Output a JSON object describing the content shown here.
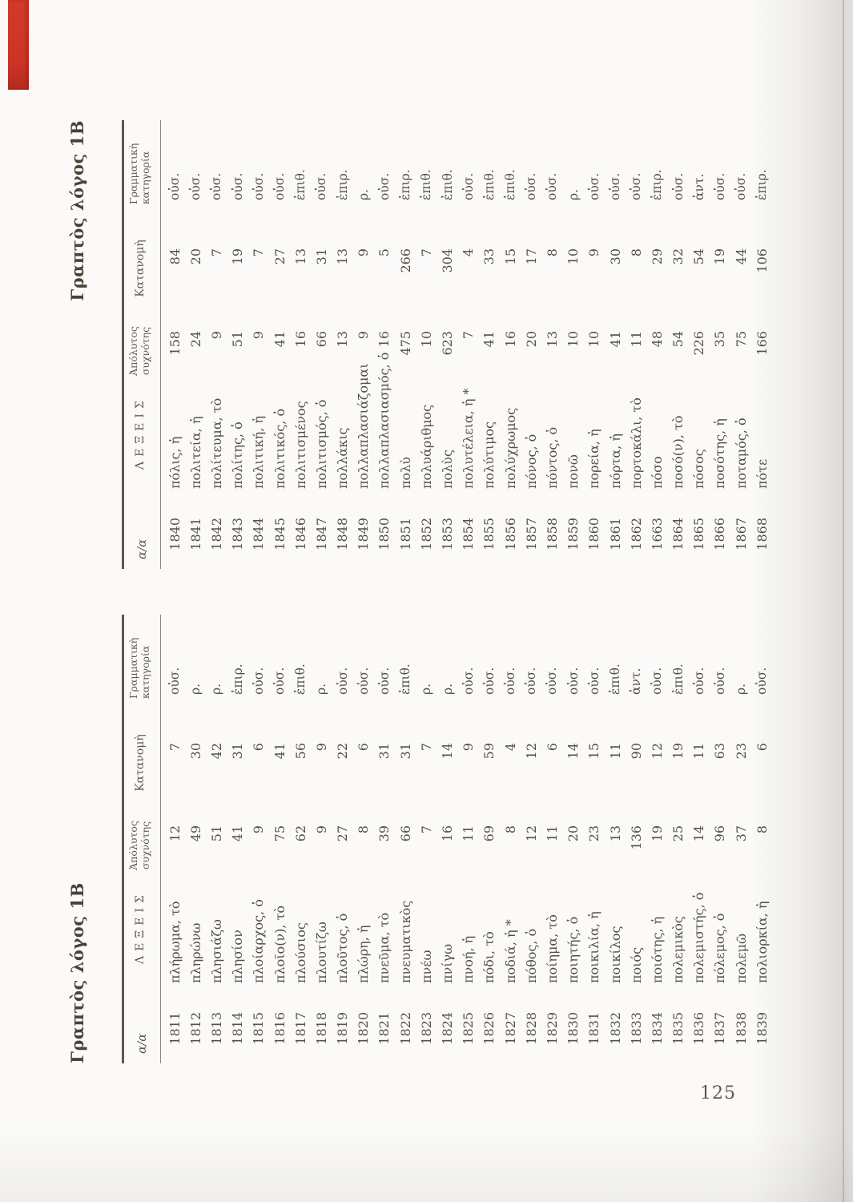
{
  "page": {
    "number": "125"
  },
  "colors": {
    "bookmark_red": "#cd3426"
  },
  "headers": {
    "index": "α/α",
    "lexeis": "ΛΕΞΕΙΣ",
    "freq_line1": "Ἀπόλυτος",
    "freq_line2": "συχνότης",
    "distribution": "Κατανομὴ",
    "gram_line1": "Γραμματικὴ",
    "gram_line2": "κατηγορία"
  },
  "left_table": {
    "title": "Γραπτὸς λόγος 1Β",
    "rows": [
      [
        "1811",
        "πλήρωμα, τὸ",
        "12",
        "7",
        "οὐσ."
      ],
      [
        "1812",
        "πληρώνω",
        "49",
        "30",
        "ρ."
      ],
      [
        "1813",
        "πλησιάζω",
        "51",
        "42",
        "ρ."
      ],
      [
        "1814",
        "πλησίον",
        "41",
        "31",
        "ἐπιρ."
      ],
      [
        "1815",
        "πλοίαρχος, ὁ",
        "9",
        "6",
        "οὐσ."
      ],
      [
        "1816",
        "πλοῖο(ν), τὸ",
        "75",
        "41",
        "οὐσ."
      ],
      [
        "1817",
        "πλούσιος",
        "62",
        "56",
        "ἐπιθ."
      ],
      [
        "1818",
        "πλουτίζω",
        "9",
        "9",
        "ρ."
      ],
      [
        "1819",
        "πλοῦτος, ὁ",
        "27",
        "22",
        "οὐσ."
      ],
      [
        "1820",
        "πλώρη, ἡ",
        "8",
        "6",
        "οὐσ."
      ],
      [
        "1821",
        "πνεῦμα, τὸ",
        "39",
        "31",
        "οὐσ."
      ],
      [
        "1822",
        "πνευματικὸς",
        "66",
        "31",
        "ἐπιθ."
      ],
      [
        "1823",
        "πνέω",
        "7",
        "7",
        "ρ."
      ],
      [
        "1824",
        "πνίγω",
        "16",
        "14",
        "ρ."
      ],
      [
        "1825",
        "πνοή, ἡ",
        "11",
        "9",
        "οὐσ."
      ],
      [
        "1826",
        "πόδι, τὸ",
        "69",
        "59",
        "οὐσ."
      ],
      [
        "1827",
        "ποδιά, ἡ *",
        "8",
        "4",
        "οὐσ."
      ],
      [
        "1828",
        "πόθος, ὁ",
        "12",
        "12",
        "οὐσ."
      ],
      [
        "1829",
        "ποίημα, τὸ",
        "11",
        "6",
        "οὐσ."
      ],
      [
        "1830",
        "ποιητής, ὁ",
        "20",
        "14",
        "οὐσ."
      ],
      [
        "1831",
        "ποικιλία, ἡ",
        "23",
        "15",
        "οὐσ."
      ],
      [
        "1832",
        "ποικίλος",
        "13",
        "11",
        "ἐπιθ."
      ],
      [
        "1833",
        "ποιός",
        "136",
        "90",
        "ἀντ."
      ],
      [
        "1834",
        "ποιότης, ἡ",
        "19",
        "12",
        "οὐσ."
      ],
      [
        "1835",
        "πολεμικὸς",
        "25",
        "19",
        "ἐπιθ."
      ],
      [
        "1836",
        "πολεμιστής, ὁ",
        "14",
        "11",
        "οὐσ."
      ],
      [
        "1837",
        "πόλεμος, ὁ",
        "96",
        "63",
        "οὐσ."
      ],
      [
        "1838",
        "πολεμῶ",
        "37",
        "23",
        "ρ."
      ],
      [
        "1839",
        "πολιορκία, ἡ",
        "8",
        "6",
        "οὐσ."
      ]
    ]
  },
  "right_table": {
    "title": "Γραπτὸς λόγος 1Β",
    "rows": [
      [
        "1840",
        "πόλις, ἡ",
        "158",
        "84",
        "οὐσ."
      ],
      [
        "1841",
        "πολιτεία, ἡ",
        "24",
        "20",
        "οὐσ."
      ],
      [
        "1842",
        "πολίτευμα, τὸ",
        "9",
        "7",
        "οὐσ."
      ],
      [
        "1843",
        "πολίτης, ὁ",
        "51",
        "19",
        "οὐσ."
      ],
      [
        "1844",
        "πολιτική, ἡ",
        "9",
        "7",
        "οὐσ."
      ],
      [
        "1845",
        "πολιτικός, ὁ",
        "41",
        "27",
        "οὐσ."
      ],
      [
        "1846",
        "πολιτισμένος",
        "16",
        "13",
        "ἐπιθ."
      ],
      [
        "1847",
        "πολιτισμός, ὁ",
        "66",
        "31",
        "οὐσ."
      ],
      [
        "1848",
        "πολλάκις",
        "13",
        "13",
        "ἐπιρ."
      ],
      [
        "1849",
        "πολλαπλασιάζομαι",
        "9",
        "9",
        "ρ."
      ],
      [
        "1850",
        "πολλαπλασιασμός, ὁ",
        "16",
        "5",
        "οὐσ."
      ],
      [
        "1851",
        "πολὺ",
        "475",
        "266",
        "ἐπιρ."
      ],
      [
        "1852",
        "πολυάριθμος",
        "10",
        "7",
        "ἐπιθ."
      ],
      [
        "1853",
        "πολὺς",
        "623",
        "304",
        "ἐπιθ."
      ],
      [
        "1854",
        "πολυτέλεια, ἡ *",
        "7",
        "4",
        "οὐσ."
      ],
      [
        "1855",
        "πολύτιμος",
        "41",
        "33",
        "ἐπιθ."
      ],
      [
        "1856",
        "πολύχρωμος",
        "16",
        "15",
        "ἐπιθ."
      ],
      [
        "1857",
        "πόνος, ὁ",
        "20",
        "17",
        "οὐσ."
      ],
      [
        "1858",
        "πόντος, ὁ",
        "13",
        "8",
        "οὐσ."
      ],
      [
        "1859",
        "πονῶ",
        "10",
        "10",
        "ρ."
      ],
      [
        "1860",
        "πορεία, ἡ",
        "10",
        "9",
        "οὐσ."
      ],
      [
        "1861",
        "πόρτα, ἡ",
        "41",
        "30",
        "οὐσ."
      ],
      [
        "1862",
        "πορτοκάλι, τὸ",
        "11",
        "8",
        "οὐσ."
      ],
      [
        "1663",
        "πόσο",
        "48",
        "29",
        "ἐπιρ."
      ],
      [
        "1864",
        "ποσό(ν), τὸ",
        "54",
        "32",
        "οὐσ."
      ],
      [
        "1865",
        "πόσος",
        "226",
        "54",
        "ἀντ."
      ],
      [
        "1866",
        "ποσότης, ἡ",
        "35",
        "19",
        "οὐσ."
      ],
      [
        "1867",
        "ποταμός, ὁ",
        "75",
        "44",
        "οὐσ."
      ],
      [
        "1868",
        "πότε",
        "166",
        "106",
        "ἐπιρ."
      ]
    ]
  }
}
